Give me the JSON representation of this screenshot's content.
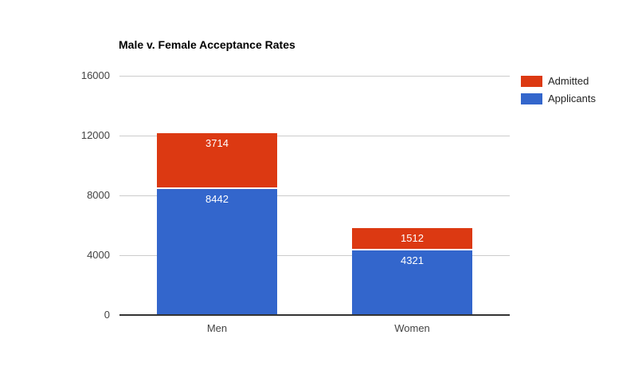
{
  "page": {
    "background_color": "#ffffff"
  },
  "chart_data": {
    "type": "bar",
    "stacked": true,
    "orientation": "vertical",
    "title": "Male v. Female Acceptance Rates",
    "title_color": "#000000",
    "categories": [
      "Men",
      "Women"
    ],
    "series": [
      {
        "name": "Applicants",
        "color": "#3366CC",
        "values": [
          8442,
          4321
        ]
      },
      {
        "name": "Admitted",
        "color": "#DC3912",
        "values": [
          3714,
          1512
        ]
      }
    ],
    "y_axis": {
      "min": 0,
      "max": 16000,
      "ticks": [
        0,
        4000,
        8000,
        12000,
        16000
      ],
      "tick_text_color": "#444444"
    },
    "x_axis": {
      "label_text_color": "#444444"
    },
    "legend": {
      "position": "right",
      "entries": [
        "Admitted",
        "Applicants"
      ],
      "text_color": "#222222"
    },
    "grid": true,
    "gridline_color": "#cccccc",
    "baseline_color": "#333333",
    "value_labels_position": "inside-top",
    "value_labels_color": "#ffffff"
  }
}
